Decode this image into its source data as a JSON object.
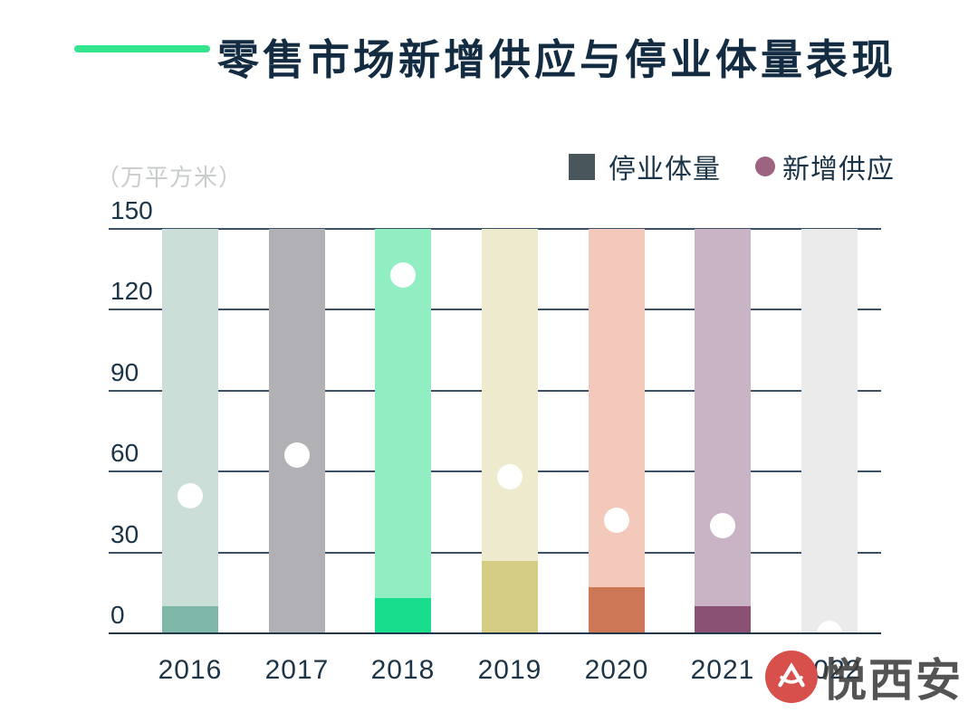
{
  "title": {
    "text": "零售市场新增供应与停业体量表现",
    "accent_color": "#35e58e",
    "text_color": "#132c42"
  },
  "unit_label": "（万平方米）",
  "unit_label_color": "#c9cdcc",
  "legend": {
    "items": [
      {
        "label": "停业体量",
        "marker": "square",
        "color": "#49565c"
      },
      {
        "label": "新增供应",
        "marker": "circle",
        "color": "#9c6480"
      }
    ],
    "label_color": "#1b3448"
  },
  "watermark": {
    "text": "悦西安",
    "circle_color": "#d8504c",
    "glyph": "bird-glyph"
  },
  "chart_data": {
    "type": "bar",
    "title": "零售市场新增供应与停业体量表现",
    "xlabel": "",
    "ylabel": "（万平方米）",
    "categories": [
      "2016",
      "2017",
      "2018",
      "2019",
      "2020",
      "2021",
      "2022"
    ],
    "y_ticks": [
      0,
      30,
      60,
      90,
      120,
      150
    ],
    "ylim": [
      0,
      150
    ],
    "grid": true,
    "legend_position": "top-right",
    "series": [
      {
        "name": "停业体量",
        "type": "bar-segment",
        "values": [
          10,
          0,
          13,
          27,
          17,
          10,
          0
        ]
      },
      {
        "name": "新增供应",
        "type": "point",
        "values": [
          51,
          66,
          133,
          58,
          42,
          40,
          0
        ]
      }
    ],
    "background_bar_height": 150,
    "background_bar_colors": [
      "#cbdfd8",
      "#b1b1b5",
      "#90eec2",
      "#edeacd",
      "#f2c9ba",
      "#c9b4c5",
      "#ebebeb"
    ],
    "segment_colors": [
      "#7fb8a8",
      "#b1b1b5",
      "#17dd8c",
      "#d5cd84",
      "#cd7757",
      "#8a5174",
      "#ebebeb"
    ],
    "point_color": "#ffffff",
    "gridline_color": "#3c5166",
    "baseline_color": "#22384a",
    "tick_label_color": "#1b3448",
    "x_label_color": "#1d3547"
  }
}
